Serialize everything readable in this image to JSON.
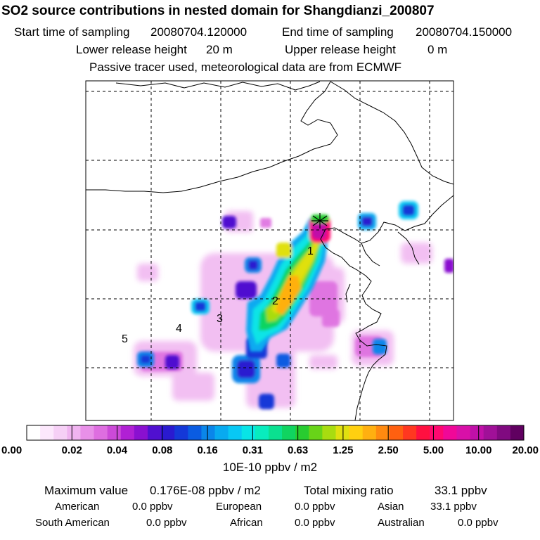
{
  "title": "SO2 source contributions in nested domain for Shangdianzi_200807",
  "sampling": {
    "start_label": "Start time of sampling",
    "start_value": "20080704.120000",
    "end_label": "End time of sampling",
    "end_value": "20080704.150000"
  },
  "release": {
    "lower_label": "Lower release height",
    "lower_value": "20 m",
    "upper_label": "Upper release height",
    "upper_value": "0 m"
  },
  "note": "Passive tracer used, meteorological data are from ECMWF",
  "region_labels": [
    "1",
    "2",
    "3",
    "4",
    "5"
  ],
  "colorbar": {
    "ticks": [
      "0.00",
      "0.02",
      "0.04",
      "0.08",
      "0.16",
      "0.31",
      "0.63",
      "1.25",
      "2.50",
      "5.00",
      "10.00",
      "20.00"
    ],
    "unit": "10E-10 ppbv / m2",
    "colors": [
      "#ffffff",
      "#fce8fc",
      "#f6d0f6",
      "#f0b4f0",
      "#e890e8",
      "#de6ee0",
      "#cc4ad8",
      "#b020d4",
      "#8a10d0",
      "#5010d0",
      "#2a1ad0",
      "#1438d8",
      "#0a5ce2",
      "#0a86ea",
      "#08aaf0",
      "#08c8f4",
      "#08e4e6",
      "#08ecbe",
      "#0ae090",
      "#10d460",
      "#28cc30",
      "#68d418",
      "#a8dc10",
      "#e0e010",
      "#ffd010",
      "#ffb010",
      "#ff8a10",
      "#ff6010",
      "#ff3820",
      "#ff1040",
      "#ff0870",
      "#f00898",
      "#d810a8",
      "#c010a8",
      "#a01098",
      "#800a80",
      "#600060"
    ]
  },
  "max_value": {
    "label": "Maximum value",
    "value": "0.176E-08 ppbv / m2"
  },
  "total": {
    "label": "Total mixing ratio",
    "value": "33.1 ppbv"
  },
  "contributions": [
    {
      "name": "American",
      "value": "0.0 ppbv"
    },
    {
      "name": "European",
      "value": "0.0 ppbv"
    },
    {
      "name": "Asian",
      "value": "33.1 ppbv"
    },
    {
      "name": "South American",
      "value": "0.0 ppbv"
    },
    {
      "name": "African",
      "value": "0.0 ppbv"
    },
    {
      "name": "Australian",
      "value": "0.0 ppbv"
    }
  ]
}
